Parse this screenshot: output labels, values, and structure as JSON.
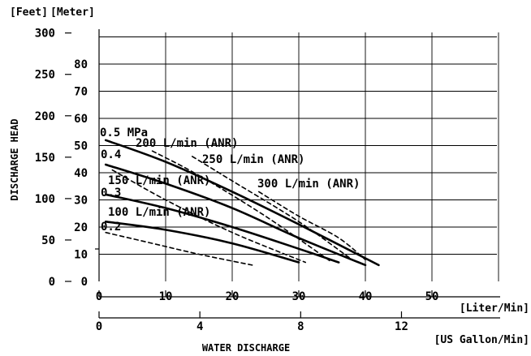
{
  "chart_data": {
    "type": "line",
    "title": "",
    "xlabel": "WATER DISCHARGE",
    "ylabel": "DISCHARGE HEAD",
    "grid": true,
    "x_unit_primary": "[Liter/Min]",
    "x_unit_secondary": "[US Gallon/Min]",
    "y_unit_left": "[Feet]",
    "y_unit_right": "[Meter]",
    "xlim": [
      0,
      60
    ],
    "ylim_meter": [
      0,
      90
    ],
    "x_ticks_lmin": [
      "0",
      "10",
      "20",
      "30",
      "40",
      "50"
    ],
    "x_ticks_gal": [
      "0",
      "4",
      "8",
      "12"
    ],
    "y_ticks_meter": [
      "0",
      "10",
      "20",
      "30",
      "40",
      "50",
      "60",
      "70",
      "80"
    ],
    "y_ticks_feet": [
      "0",
      "50",
      "100",
      "150",
      "200",
      "250",
      "300"
    ],
    "series": [
      {
        "name": "0.5 MPa",
        "type": "pressure",
        "points": [
          [
            1,
            52
          ],
          [
            10,
            44
          ],
          [
            20,
            33
          ],
          [
            30,
            21
          ],
          [
            42,
            6
          ]
        ]
      },
      {
        "name": "0.4",
        "type": "pressure",
        "points": [
          [
            1,
            43
          ],
          [
            10,
            36
          ],
          [
            20,
            27
          ],
          [
            30,
            16
          ],
          [
            40,
            6
          ]
        ]
      },
      {
        "name": "0.3",
        "type": "pressure",
        "points": [
          [
            1,
            32
          ],
          [
            10,
            27
          ],
          [
            20,
            20
          ],
          [
            30,
            12
          ],
          [
            36,
            7
          ]
        ]
      },
      {
        "name": "0.2",
        "type": "pressure",
        "points": [
          [
            1,
            22
          ],
          [
            10,
            19
          ],
          [
            20,
            14
          ],
          [
            30,
            7
          ]
        ]
      },
      {
        "name": "100 L/min (ANR)",
        "type": "air",
        "points": [
          [
            1,
            18
          ],
          [
            8,
            14
          ],
          [
            15,
            10
          ],
          [
            23,
            6
          ]
        ]
      },
      {
        "name": "150 L/min (ANR)",
        "type": "air",
        "points": [
          [
            2,
            41
          ],
          [
            10,
            30
          ],
          [
            20,
            18
          ],
          [
            31,
            7
          ]
        ]
      },
      {
        "name": "200 L/min (ANR)",
        "type": "air",
        "points": [
          [
            8,
            48
          ],
          [
            15,
            39
          ],
          [
            25,
            24
          ],
          [
            35,
            7
          ]
        ]
      },
      {
        "name": "250 L/min (ANR)",
        "type": "air",
        "points": [
          [
            14,
            46
          ],
          [
            20,
            37
          ],
          [
            30,
            22
          ],
          [
            38,
            8
          ]
        ]
      },
      {
        "name": "300 L/min (ANR)",
        "type": "air",
        "points": [
          [
            24,
            33
          ],
          [
            30,
            24
          ],
          [
            36,
            16
          ],
          [
            40,
            8
          ]
        ]
      }
    ]
  }
}
